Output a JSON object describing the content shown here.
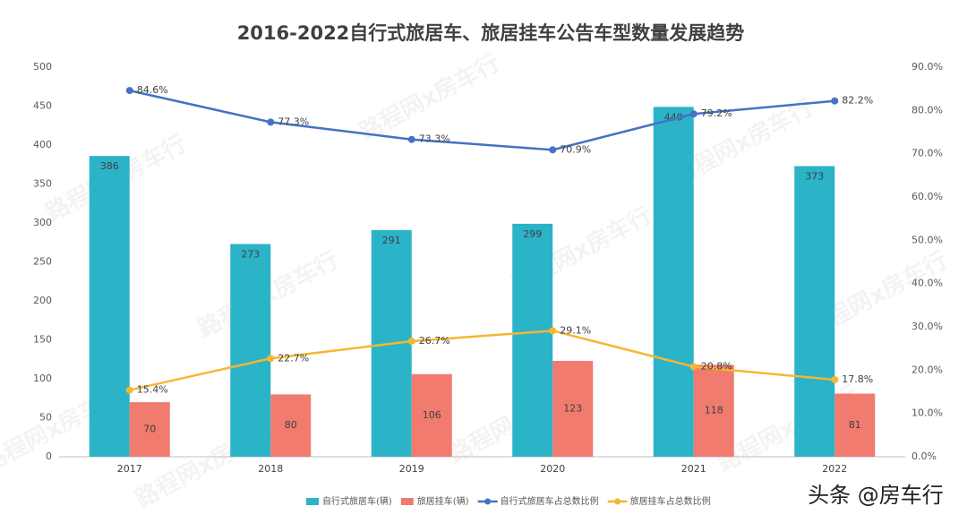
{
  "chart_data": {
    "type": "bar",
    "title": "2016-2022自行式旅居车、旅居挂车公告车型数量发展趋势",
    "categories": [
      "2017",
      "2018",
      "2019",
      "2020",
      "2021",
      "2022"
    ],
    "series": [
      {
        "name": "自行式旅居车(辆)",
        "type": "bar",
        "color": "#2bb3c8",
        "values": [
          386,
          273,
          291,
          299,
          449,
          373
        ]
      },
      {
        "name": "旅居挂车(辆)",
        "type": "bar",
        "color": "#f07b6e",
        "values": [
          70,
          80,
          106,
          123,
          118,
          81
        ]
      },
      {
        "name": "自行式旅居车占总数比例",
        "type": "line",
        "axis": "y2",
        "color": "#4472c4",
        "values": [
          84.6,
          77.3,
          73.3,
          70.9,
          79.2,
          82.2
        ],
        "value_labels": [
          "84.6%",
          "77.3%",
          "73.3%",
          "70.9%",
          "79.2%",
          "82.2%"
        ]
      },
      {
        "name": "旅居挂车占总数比例",
        "type": "line",
        "axis": "y2",
        "color": "#f5b731",
        "values": [
          15.4,
          22.7,
          26.7,
          29.1,
          20.8,
          17.8
        ],
        "value_labels": [
          "15.4%",
          "22.7%",
          "26.7%",
          "29.1%",
          "20.8%",
          "17.8%"
        ]
      }
    ],
    "ylim": [
      0,
      500
    ],
    "yticks": [
      0,
      50,
      100,
      150,
      200,
      250,
      300,
      350,
      400,
      450,
      500
    ],
    "y2lim": [
      0,
      90
    ],
    "y2ticks": [
      {
        "value": 0,
        "label": "0.0%"
      },
      {
        "value": 10,
        "label": "10.0%"
      },
      {
        "value": 20,
        "label": "20.0%"
      },
      {
        "value": 30,
        "label": "30.0%"
      },
      {
        "value": 40,
        "label": "40.0%"
      },
      {
        "value": 50,
        "label": "50.0%"
      },
      {
        "value": 60,
        "label": "60.0%"
      },
      {
        "value": 70,
        "label": "70.0%"
      },
      {
        "value": 80,
        "label": "80.0%"
      },
      {
        "value": 90,
        "label": "90.0%"
      }
    ],
    "grid": false,
    "legend": "bottom",
    "watermark": "路程网x房车行",
    "source": "头条 @房车行"
  }
}
